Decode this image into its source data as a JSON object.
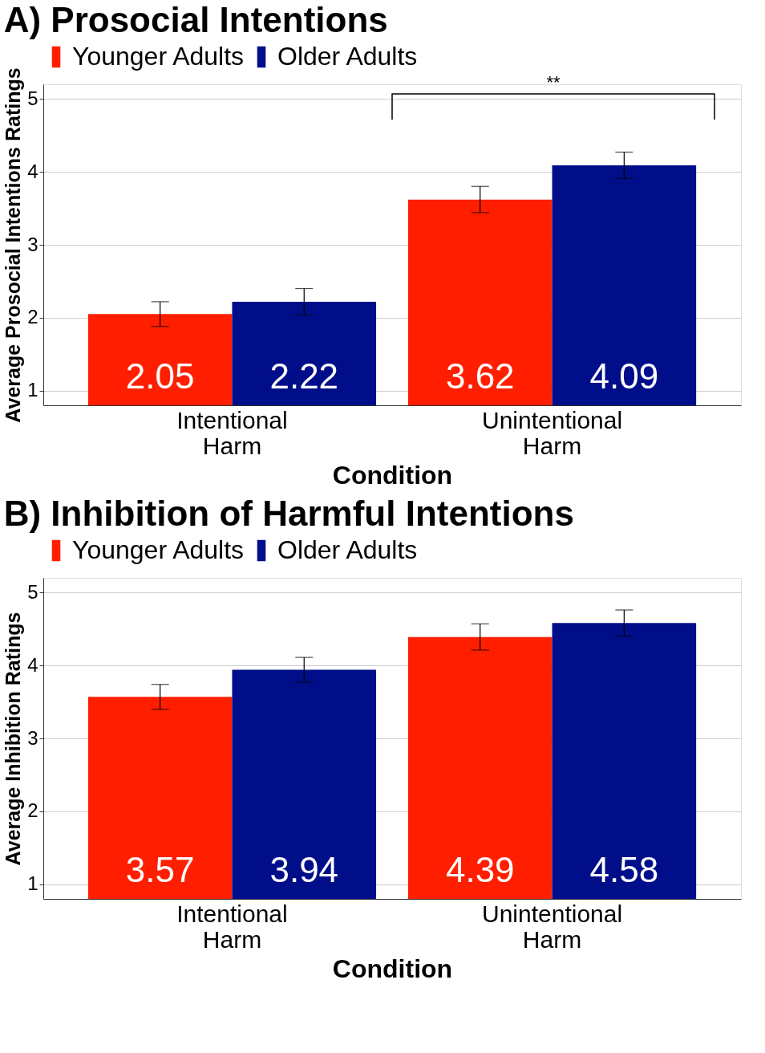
{
  "chart_data": [
    {
      "type": "bar",
      "title": "A) Prosocial Intentions",
      "xlabel": "Condition",
      "ylabel": "Average Prosocial Intentions Ratings",
      "categories": [
        "Intentional Harm",
        "Unintentional Harm"
      ],
      "series": [
        {
          "name": "Younger Adults",
          "color": "#ff1f00",
          "values": [
            2.05,
            3.62
          ],
          "errors": [
            0.17,
            0.18
          ]
        },
        {
          "name": "Older Adults",
          "color": "#000e89",
          "values": [
            2.22,
            4.09
          ],
          "errors": [
            0.18,
            0.18
          ]
        }
      ],
      "ylim": [
        0.8,
        5.2
      ],
      "yticks": [
        1,
        2,
        3,
        4,
        5
      ],
      "grid": "y",
      "legend": "top",
      "data_labels": true,
      "annotations": [
        "**"
      ]
    },
    {
      "type": "bar",
      "title": "B) Inhibition of Harmful Intentions",
      "xlabel": "Condition",
      "ylabel": "Average Inhibition Ratings",
      "categories": [
        "Intentional Harm",
        "Unintentional Harm"
      ],
      "series": [
        {
          "name": "Younger Adults",
          "color": "#ff1f00",
          "values": [
            3.57,
            4.39
          ],
          "errors": [
            0.17,
            0.18
          ]
        },
        {
          "name": "Older Adults",
          "color": "#000e89",
          "values": [
            3.94,
            4.58
          ],
          "errors": [
            0.17,
            0.18
          ]
        }
      ],
      "ylim": [
        0.8,
        5.2
      ],
      "yticks": [
        1,
        2,
        3,
        4,
        5
      ],
      "grid": "y",
      "legend": "top",
      "data_labels": true
    }
  ]
}
